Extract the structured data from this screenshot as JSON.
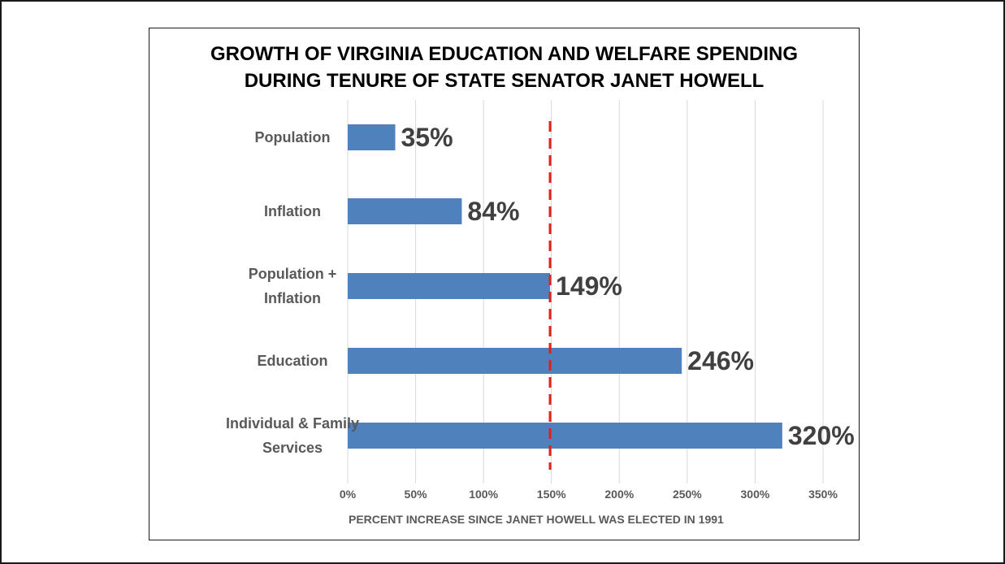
{
  "chart_data": {
    "type": "bar",
    "orientation": "horizontal",
    "title_lines": [
      "GROWTH OF VIRGINIA EDUCATION AND WELFARE SPENDING",
      "DURING TENURE OF STATE SENATOR JANET HOWELL"
    ],
    "categories": [
      [
        "Population"
      ],
      [
        "Inflation"
      ],
      [
        "Population +",
        "Inflation"
      ],
      [
        "Education"
      ],
      [
        "Individual & Family",
        "Services"
      ]
    ],
    "values": [
      35,
      84,
      149,
      246,
      320
    ],
    "data_labels": [
      "35%",
      "84%",
      "149%",
      "246%",
      "320%"
    ],
    "xlim": [
      0,
      350
    ],
    "x_ticks": [
      0,
      50,
      100,
      150,
      200,
      250,
      300,
      350
    ],
    "x_tick_labels": [
      "0%",
      "50%",
      "100%",
      "150%",
      "200%",
      "250%",
      "300%",
      "350%"
    ],
    "xlabel": "PERCENT INCREASE SINCE JANET HOWELL WAS  ELECTED IN 1991",
    "ylabel": "",
    "grid": "vertical",
    "legend": "none",
    "reference_line": {
      "x": 149,
      "style": "dashed"
    },
    "colors": {
      "bar": "#4f81bd",
      "reference_line": "#e0201b",
      "grid": "#d9d9d9"
    }
  }
}
